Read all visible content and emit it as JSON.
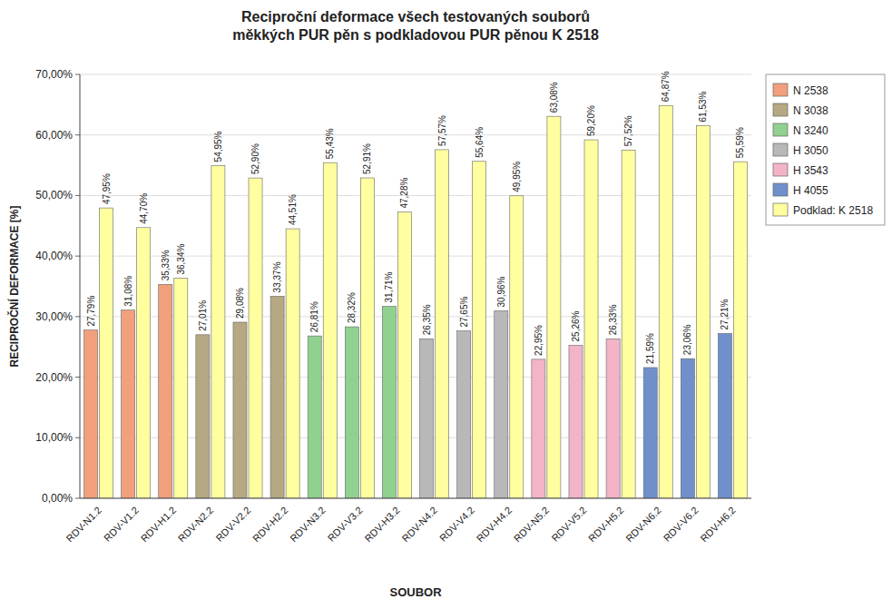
{
  "chart_data": {
    "type": "bar",
    "title": "Reciproční deformace všech testovaných souborů\nměkkých PUR pěn s podkladovou PUR pěnou K 2518",
    "x_label": "SOUBOR",
    "y_label": "RECIPROČNÍ DEFORMACE [%]",
    "categories": [
      "RDV-N1.2",
      "RDV-V1.2",
      "RDV-H1.2",
      "RDV-N2.2",
      "RDV-V2.2",
      "RDV-H2.2",
      "RDV-N3.2",
      "RDV-V3.2",
      "RDV-H3.2",
      "RDV-N4.2",
      "RDV-V4.2",
      "RDV-H4.2",
      "RDV-N5.2",
      "RDV-V5.2",
      "RDV-H5.2",
      "RDV-N6.2",
      "RDV-V6.2",
      "RDV-H6.2"
    ],
    "series": [
      {
        "name": "N 2538",
        "color": "#F2A07B",
        "values": [
          0.2779,
          0.3108,
          0.3533,
          null,
          null,
          null,
          null,
          null,
          null,
          null,
          null,
          null,
          null,
          null,
          null,
          null,
          null,
          null
        ],
        "value_labels": [
          "27,79%",
          "31,08%",
          "35,33%",
          null,
          null,
          null,
          null,
          null,
          null,
          null,
          null,
          null,
          null,
          null,
          null,
          null,
          null,
          null
        ]
      },
      {
        "name": "N 3038",
        "color": "#B5A882",
        "values": [
          null,
          null,
          null,
          0.2701,
          0.2908,
          0.3337,
          null,
          null,
          null,
          null,
          null,
          null,
          null,
          null,
          null,
          null,
          null,
          null
        ],
        "value_labels": [
          null,
          null,
          null,
          "27,01%",
          "29,08%",
          "33,37%",
          null,
          null,
          null,
          null,
          null,
          null,
          null,
          null,
          null,
          null,
          null,
          null
        ]
      },
      {
        "name": "N 3240",
        "color": "#91D190",
        "values": [
          null,
          null,
          null,
          null,
          null,
          null,
          0.2681,
          0.2832,
          0.3171,
          null,
          null,
          null,
          null,
          null,
          null,
          null,
          null,
          null
        ],
        "value_labels": [
          null,
          null,
          null,
          null,
          null,
          null,
          "26,81%",
          "28,32%",
          "31,71%",
          null,
          null,
          null,
          null,
          null,
          null,
          null,
          null,
          null
        ]
      },
      {
        "name": "H 3050",
        "color": "#B8B8B8",
        "values": [
          null,
          null,
          null,
          null,
          null,
          null,
          null,
          null,
          null,
          0.2635,
          0.2765,
          0.3096,
          null,
          null,
          null,
          null,
          null,
          null
        ],
        "value_labels": [
          null,
          null,
          null,
          null,
          null,
          null,
          null,
          null,
          null,
          "26,35%",
          "27,65%",
          "30,96%",
          null,
          null,
          null,
          null,
          null,
          null
        ]
      },
      {
        "name": "H 3543",
        "color": "#F2B4C6",
        "values": [
          null,
          null,
          null,
          null,
          null,
          null,
          null,
          null,
          null,
          null,
          null,
          null,
          0.2295,
          0.2526,
          0.2633,
          null,
          null,
          null
        ],
        "value_labels": [
          null,
          null,
          null,
          null,
          null,
          null,
          null,
          null,
          null,
          null,
          null,
          null,
          "22,95%",
          "25,26%",
          "26,33%",
          null,
          null,
          null
        ]
      },
      {
        "name": "H 4055",
        "color": "#7090CC",
        "values": [
          null,
          null,
          null,
          null,
          null,
          null,
          null,
          null,
          null,
          null,
          null,
          null,
          null,
          null,
          null,
          0.2159,
          0.2306,
          0.2721
        ],
        "value_labels": [
          null,
          null,
          null,
          null,
          null,
          null,
          null,
          null,
          null,
          null,
          null,
          null,
          null,
          null,
          null,
          "21,59%",
          "23,06%",
          "27,21%"
        ]
      },
      {
        "name": "Podklad: K 2518",
        "color": "#FFFFA0",
        "values": [
          0.4795,
          0.447,
          0.3634,
          0.5495,
          0.529,
          0.4451,
          0.5543,
          0.5291,
          0.4728,
          0.5757,
          0.5564,
          0.4995,
          0.6308,
          0.592,
          0.5752,
          0.6487,
          0.6153,
          0.5559
        ],
        "value_labels": [
          "47,95%",
          "44,70%",
          "36,34%",
          "54,95%",
          "52,90%",
          "44,51%",
          "55,43%",
          "52,91%",
          "47,28%",
          "57,57%",
          "55,64%",
          "49,95%",
          "63,08%",
          "59,20%",
          "57,52%",
          "64,87%",
          "61,53%",
          "55,59%"
        ]
      }
    ],
    "ylim": [
      0.0,
      0.7
    ],
    "yticks": [
      {
        "value": 0.0,
        "label": "0,00%"
      },
      {
        "value": 0.1,
        "label": "10,00%"
      },
      {
        "value": 0.2,
        "label": "20,00%"
      },
      {
        "value": 0.3,
        "label": "30,00%"
      },
      {
        "value": 0.4,
        "label": "40,00%"
      },
      {
        "value": 0.5,
        "label": "50,00%"
      },
      {
        "value": 0.6,
        "label": "60,00%"
      },
      {
        "value": 0.7,
        "label": "70,00%"
      }
    ],
    "grid": true,
    "legend": "right",
    "data_labels": true
  }
}
